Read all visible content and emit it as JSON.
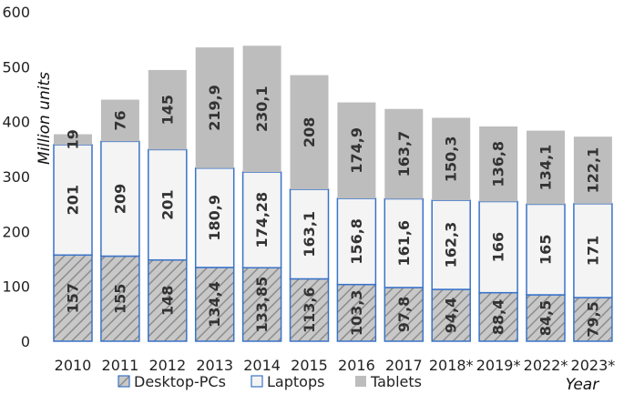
{
  "chart_data": {
    "type": "bar",
    "stacked": true,
    "categories": [
      "2010",
      "2011",
      "2012",
      "2013",
      "2014",
      "2015",
      "2016",
      "2017",
      "2018*",
      "2019*",
      "2022*",
      "2023*"
    ],
    "series": [
      {
        "name": "Desktop-PCs",
        "values": [
          157,
          155,
          148,
          134.4,
          133.85,
          113.6,
          103.3,
          97.8,
          94.4,
          88.4,
          84.5,
          79.5
        ],
        "labels": [
          "157",
          "155",
          "148",
          "134,4",
          "133,85",
          "113,6",
          "103,3",
          "97,8",
          "94,4",
          "88,4",
          "84,5",
          "79,5"
        ]
      },
      {
        "name": "Laptops",
        "values": [
          201,
          209,
          201,
          180.9,
          174.28,
          163.1,
          156.8,
          161.6,
          162.3,
          166,
          165,
          171
        ],
        "labels": [
          "201",
          "209",
          "201",
          "180,9",
          "174,28",
          "163,1",
          "156,8",
          "161,6",
          "162,3",
          "166",
          "165",
          "171"
        ]
      },
      {
        "name": "Tablets",
        "values": [
          19,
          76,
          145,
          219.9,
          230.1,
          208,
          174.9,
          163.7,
          150.3,
          136.8,
          134.1,
          122.1
        ],
        "labels": [
          "19",
          "76",
          "145",
          "219,9",
          "230,1",
          "208",
          "174,9",
          "163,7",
          "150,3",
          "136,8",
          "134,1",
          "122,1"
        ]
      }
    ],
    "ylabel": "Million units",
    "xlabel": "Year",
    "ylim": [
      0,
      600
    ],
    "yticks": [
      "0",
      "100",
      "200",
      "300",
      "400",
      "500",
      "600"
    ],
    "grid": false,
    "legend_position": "bottom",
    "colors": {
      "desktop_fill": "#c8c8c8",
      "desktop_hatch": "#8c8c8c",
      "laptop_fill": "#f4f4f4",
      "laptop_border": "#3a73c8",
      "tablet_fill": "#bdbdbd"
    }
  }
}
